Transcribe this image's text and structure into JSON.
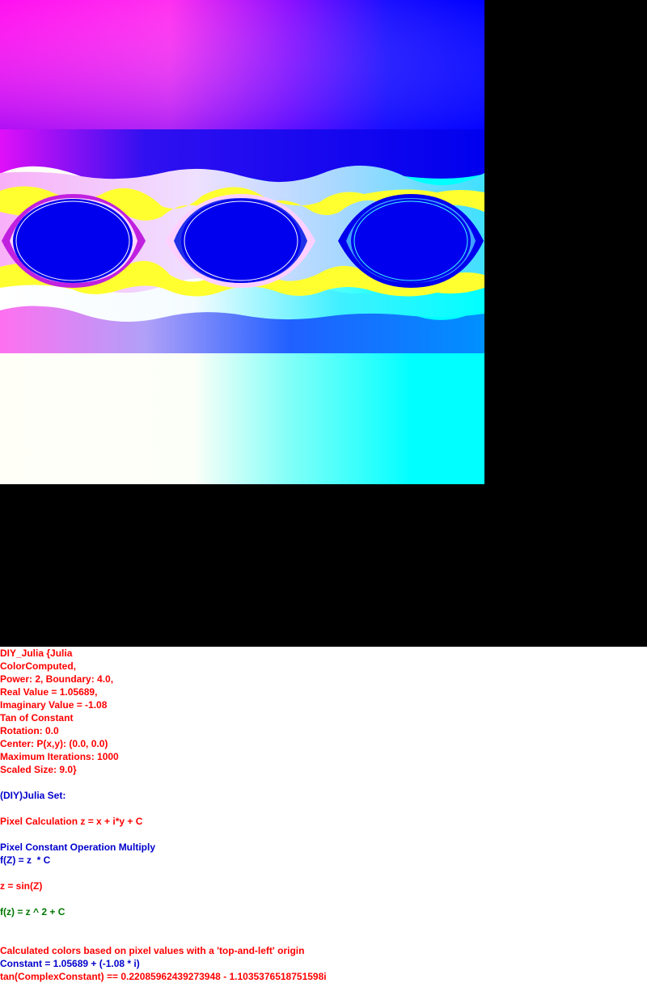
{
  "colors": {
    "background": "#000000",
    "text_red": "#ff0000",
    "text_blue": "#0000cc",
    "text_green": "#007700"
  },
  "info_lines": [
    {
      "text": "DIY_Julia {Julia",
      "color": "red"
    },
    {
      "text": "ColorComputed,",
      "color": "red"
    },
    {
      "text": "Power: 2, Boundary: 4.0,",
      "color": "red"
    },
    {
      "text": "Real Value = 1.05689,",
      "color": "red"
    },
    {
      "text": "Imaginary Value = -1.08",
      "color": "red"
    },
    {
      "text": "Tan of Constant",
      "color": "red"
    },
    {
      "text": "Rotation: 0.0",
      "color": "red"
    },
    {
      "text": "Center: P(x,y): (0.0, 0.0)",
      "color": "red"
    },
    {
      "text": "Maximum Iterations: 1000",
      "color": "red"
    },
    {
      "text": "Scaled Size: 9.0}",
      "color": "red"
    },
    {
      "text": "",
      "color": "red"
    },
    {
      "text": "(DIY)Julia Set:",
      "color": "blue"
    },
    {
      "text": "",
      "color": "red"
    },
    {
      "text": "Pixel Calculation z = x + i*y + C",
      "color": "red"
    },
    {
      "text": "",
      "color": "red"
    },
    {
      "text": "Pixel Constant Operation Multiply",
      "color": "blue"
    },
    {
      "text": "f(Z) = z  * C",
      "color": "blue"
    },
    {
      "text": "",
      "color": "red"
    },
    {
      "text": "z = sin(Z)",
      "color": "red"
    },
    {
      "text": "",
      "color": "red"
    },
    {
      "text": "f(z) = z ^ 2 + C",
      "color": "green"
    },
    {
      "text": "",
      "color": "red"
    },
    {
      "text": "",
      "color": "red"
    },
    {
      "text": "Calculated colors based on pixel values with a 'top-and-left' origin",
      "color": "red"
    },
    {
      "text": "Constant = 1.05689 + (-1.08 * i)",
      "color": "blue"
    },
    {
      "text": "tan(ComplexConstant) == 0.22085962439273948 - 1.1035376518751598i",
      "color": "red"
    }
  ]
}
